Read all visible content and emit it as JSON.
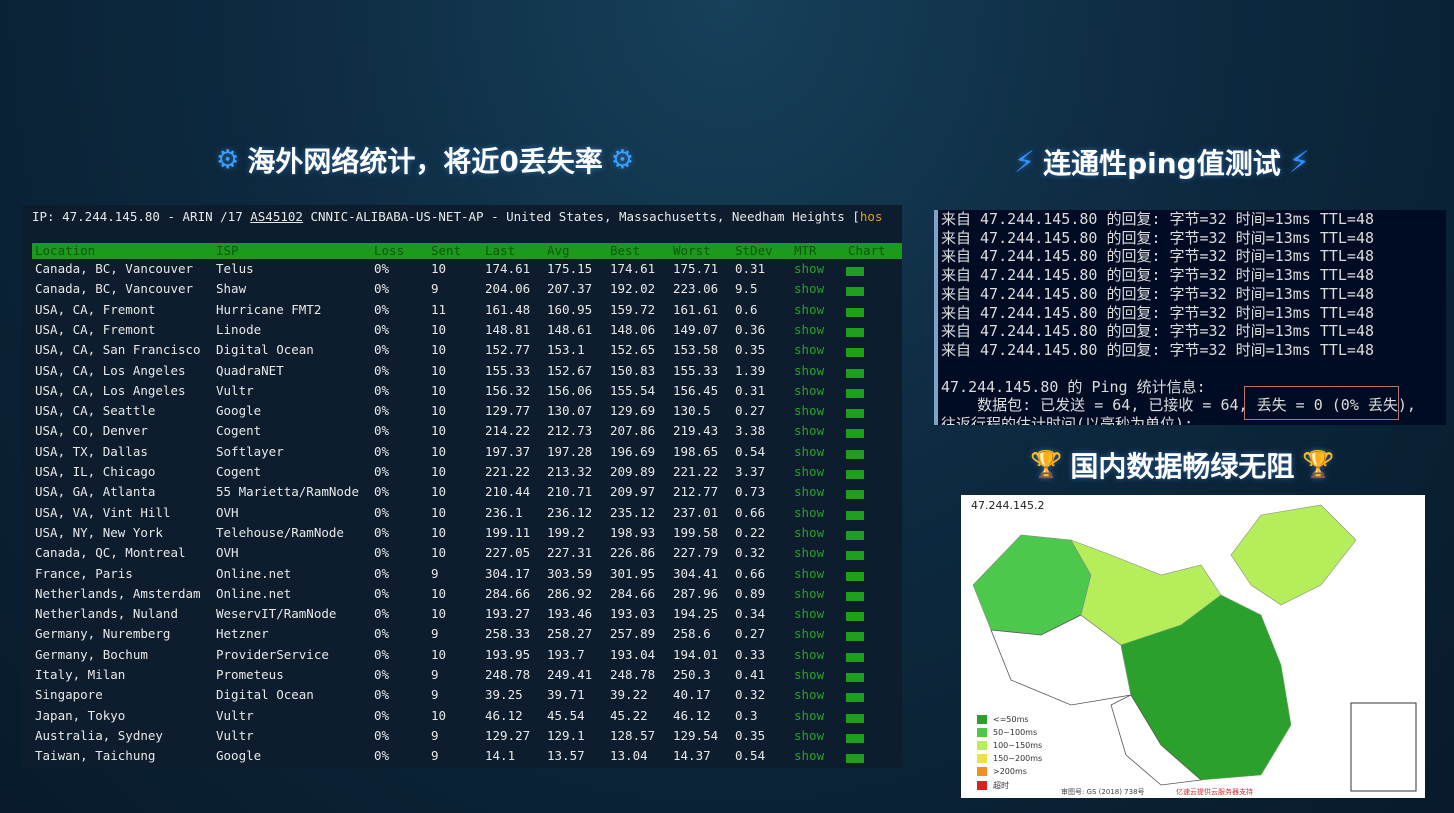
{
  "headings": {
    "left": "海外网络统计，将近0丢失率",
    "right_top": "连通性ping值测试",
    "right_bottom": "国内数据畅绿无阻"
  },
  "mtr": {
    "ip_prefix": "IP: 47.244.145.80 - ARIN /17 ",
    "asn": "AS45102",
    "ip_suffix": " CNNIC-ALIBABA-US-NET-AP - United States, Massachusetts, Needham Heights [",
    "ip_trail": "hos",
    "columns": [
      "Location",
      "ISP",
      "Loss",
      "Sent",
      "Last",
      "Avg",
      "Best",
      "Worst",
      "StDev",
      "MTR",
      "Chart"
    ],
    "rows": [
      [
        "Canada, BC, Vancouver",
        "Telus",
        "0%",
        "10",
        "174.61",
        "175.15",
        "174.61",
        "175.71",
        "0.31",
        "show"
      ],
      [
        "Canada, BC, Vancouver",
        "Shaw",
        "0%",
        "9",
        "204.06",
        "207.37",
        "192.02",
        "223.06",
        "9.5",
        "show"
      ],
      [
        "USA, CA, Fremont",
        "Hurricane FMT2",
        "0%",
        "11",
        "161.48",
        "160.95",
        "159.72",
        "161.61",
        "0.6",
        "show"
      ],
      [
        "USA, CA, Fremont",
        "Linode",
        "0%",
        "10",
        "148.81",
        "148.61",
        "148.06",
        "149.07",
        "0.36",
        "show"
      ],
      [
        "USA, CA, San Francisco",
        "Digital Ocean",
        "0%",
        "10",
        "152.77",
        "153.1",
        "152.65",
        "153.58",
        "0.35",
        "show"
      ],
      [
        "USA, CA, Los Angeles",
        "QuadraNET",
        "0%",
        "10",
        "155.33",
        "152.67",
        "150.83",
        "155.33",
        "1.39",
        "show"
      ],
      [
        "USA, CA, Los Angeles",
        "Vultr",
        "0%",
        "10",
        "156.32",
        "156.06",
        "155.54",
        "156.45",
        "0.31",
        "show"
      ],
      [
        "USA, CA, Seattle",
        "Google",
        "0%",
        "10",
        "129.77",
        "130.07",
        "129.69",
        "130.5",
        "0.27",
        "show"
      ],
      [
        "USA, CO, Denver",
        "Cogent",
        "0%",
        "10",
        "214.22",
        "212.73",
        "207.86",
        "219.43",
        "3.38",
        "show"
      ],
      [
        "USA, TX, Dallas",
        "Softlayer",
        "0%",
        "10",
        "197.37",
        "197.28",
        "196.69",
        "198.65",
        "0.54",
        "show"
      ],
      [
        "USA, IL, Chicago",
        "Cogent",
        "0%",
        "10",
        "221.22",
        "213.32",
        "209.89",
        "221.22",
        "3.37",
        "show"
      ],
      [
        "USA, GA, Atlanta",
        "55 Marietta/RamNode",
        "0%",
        "10",
        "210.44",
        "210.71",
        "209.97",
        "212.77",
        "0.73",
        "show"
      ],
      [
        "USA, VA, Vint Hill",
        "OVH",
        "0%",
        "10",
        "236.1",
        "236.12",
        "235.12",
        "237.01",
        "0.66",
        "show"
      ],
      [
        "USA, NY, New York",
        "Telehouse/RamNode",
        "0%",
        "10",
        "199.11",
        "199.2",
        "198.93",
        "199.58",
        "0.22",
        "show"
      ],
      [
        "Canada, QC, Montreal",
        "OVH",
        "0%",
        "10",
        "227.05",
        "227.31",
        "226.86",
        "227.79",
        "0.32",
        "show"
      ],
      [
        "France, Paris",
        "Online.net",
        "0%",
        "9",
        "304.17",
        "303.59",
        "301.95",
        "304.41",
        "0.66",
        "show"
      ],
      [
        "Netherlands, Amsterdam",
        "Online.net",
        "0%",
        "10",
        "284.66",
        "286.92",
        "284.66",
        "287.96",
        "0.89",
        "show"
      ],
      [
        "Netherlands, Nuland",
        "WeservIT/RamNode",
        "0%",
        "10",
        "193.27",
        "193.46",
        "193.03",
        "194.25",
        "0.34",
        "show"
      ],
      [
        "Germany, Nuremberg",
        "Hetzner",
        "0%",
        "9",
        "258.33",
        "258.27",
        "257.89",
        "258.6",
        "0.27",
        "show"
      ],
      [
        "Germany, Bochum",
        "ProviderService",
        "0%",
        "10",
        "193.95",
        "193.7",
        "193.04",
        "194.01",
        "0.33",
        "show"
      ],
      [
        "Italy, Milan",
        "Prometeus",
        "0%",
        "9",
        "248.78",
        "249.41",
        "248.78",
        "250.3",
        "0.41",
        "show"
      ],
      [
        "Singapore",
        "Digital Ocean",
        "0%",
        "9",
        "39.25",
        "39.71",
        "39.22",
        "40.17",
        "0.32",
        "show"
      ],
      [
        "Japan, Tokyo",
        "Vultr",
        "0%",
        "10",
        "46.12",
        "45.54",
        "45.22",
        "46.12",
        "0.3",
        "show"
      ],
      [
        "Australia, Sydney",
        "Vultr",
        "0%",
        "9",
        "129.27",
        "129.1",
        "128.57",
        "129.54",
        "0.35",
        "show"
      ],
      [
        "Taiwan, Taichung",
        "Google",
        "0%",
        "9",
        "14.1",
        "13.57",
        "13.04",
        "14.37",
        "0.54",
        "show"
      ]
    ]
  },
  "ping": {
    "lines": [
      "来自 47.244.145.80 的回复: 字节=32 时间=13ms TTL=48",
      "来自 47.244.145.80 的回复: 字节=32 时间=13ms TTL=48",
      "来自 47.244.145.80 的回复: 字节=32 时间=13ms TTL=48",
      "来自 47.244.145.80 的回复: 字节=32 时间=13ms TTL=48",
      "来自 47.244.145.80 的回复: 字节=32 时间=13ms TTL=48",
      "来自 47.244.145.80 的回复: 字节=32 时间=13ms TTL=48",
      "来自 47.244.145.80 的回复: 字节=32 时间=13ms TTL=48",
      "来自 47.244.145.80 的回复: 字节=32 时间=13ms TTL=48"
    ],
    "stats_title": "47.244.145.80 的 Ping 统计信息:",
    "stats_line": "    数据包: 已发送 = 64, 已接收 = 64, 丢失 = 0 (0% 丢失),",
    "cut_line": "往返行程的估计时间(以毫秒为单位):"
  },
  "map": {
    "ip": "47.244.145.2",
    "legend": [
      {
        "label": "<=50ms",
        "color": "#2ca02c"
      },
      {
        "label": "50~100ms",
        "color": "#4cc94c"
      },
      {
        "label": "100~150ms",
        "color": "#b5ee5a"
      },
      {
        "label": "150~200ms",
        "color": "#f0e040"
      },
      {
        "label": ">200ms",
        "color": "#f09020"
      },
      {
        "label": "超时",
        "color": "#e02020"
      }
    ],
    "footer": "审图号: GS (2018) 738号",
    "credit": "亿速云提供云服务器支持"
  }
}
